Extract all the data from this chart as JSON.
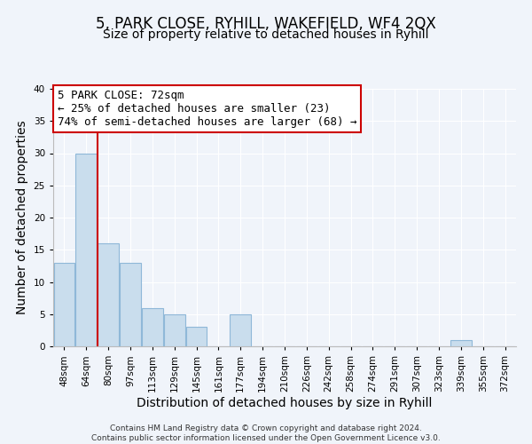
{
  "title": "5, PARK CLOSE, RYHILL, WAKEFIELD, WF4 2QX",
  "subtitle": "Size of property relative to detached houses in Ryhill",
  "xlabel": "Distribution of detached houses by size in Ryhill",
  "ylabel": "Number of detached properties",
  "footer_line1": "Contains HM Land Registry data © Crown copyright and database right 2024.",
  "footer_line2": "Contains public sector information licensed under the Open Government Licence v3.0.",
  "bin_labels": [
    "48sqm",
    "64sqm",
    "80sqm",
    "97sqm",
    "113sqm",
    "129sqm",
    "145sqm",
    "161sqm",
    "177sqm",
    "194sqm",
    "210sqm",
    "226sqm",
    "242sqm",
    "258sqm",
    "274sqm",
    "291sqm",
    "307sqm",
    "323sqm",
    "339sqm",
    "355sqm",
    "372sqm"
  ],
  "bar_heights": [
    13,
    30,
    16,
    13,
    6,
    5,
    3,
    0,
    5,
    0,
    0,
    0,
    0,
    0,
    0,
    0,
    0,
    0,
    1,
    0,
    0
  ],
  "bar_color": "#c9dded",
  "bar_edge_color": "#8fb8d8",
  "vline_x_idx": 1.5,
  "vline_color": "#cc0000",
  "annotation_line1": "5 PARK CLOSE: 72sqm",
  "annotation_line2": "← 25% of detached houses are smaller (23)",
  "annotation_line3": "74% of semi-detached houses are larger (68) →",
  "annotation_box_color": "#ffffff",
  "annotation_box_edge_color": "#cc0000",
  "ylim": [
    0,
    40
  ],
  "yticks": [
    0,
    5,
    10,
    15,
    20,
    25,
    30,
    35,
    40
  ],
  "bg_color": "#f0f4fa",
  "plot_bg_color": "#f0f4fa",
  "grid_color": "#ffffff",
  "title_fontsize": 12,
  "subtitle_fontsize": 10,
  "axis_label_fontsize": 10,
  "tick_fontsize": 7.5,
  "annotation_fontsize": 9,
  "footer_fontsize": 6.5
}
